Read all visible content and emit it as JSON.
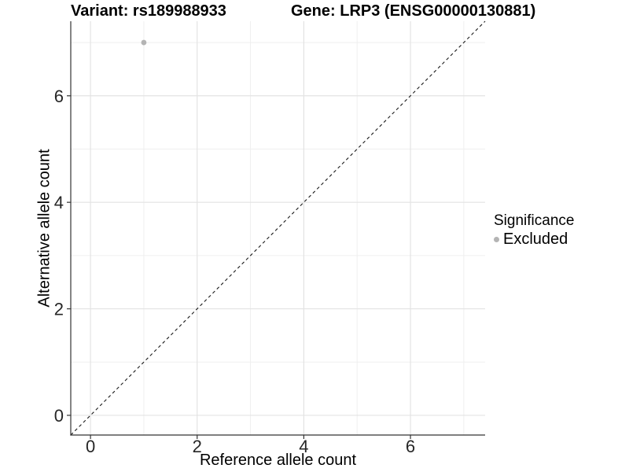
{
  "chart_data": {
    "type": "scatter",
    "title_left": "Variant: rs189988933",
    "title_right": "Gene: LRP3 (ENSG00000130881)",
    "xlabel": "Reference allele count",
    "ylabel": "Alternative allele count",
    "xlim": [
      -0.37,
      7.4
    ],
    "ylim": [
      -0.37,
      7.4
    ],
    "x_ticks": [
      0,
      2,
      4,
      6
    ],
    "y_ticks": [
      0,
      2,
      4,
      6
    ],
    "x_minor_ticks": [
      1,
      3,
      5,
      7
    ],
    "y_minor_ticks": [
      1,
      3,
      5,
      7
    ],
    "grid": "major+minor",
    "legend_position": "right",
    "series": [
      {
        "name": "Excluded",
        "color": "#b4b4b4",
        "points": [
          {
            "x": 1,
            "y": 7
          }
        ]
      }
    ],
    "reference_line": {
      "kind": "identity",
      "equation": "y = x",
      "style": "dashed",
      "color": "#1a1a1a"
    },
    "legend": {
      "title": "Significance",
      "entries": [
        {
          "label": "Excluded",
          "marker": "circle",
          "color": "#b4b4b4"
        }
      ]
    }
  },
  "colors": {
    "background": "#ffffff",
    "grid_major": "#e3e3e3",
    "grid_minor": "#efefef",
    "axis_line": "#333333",
    "tick_mark": "#333333",
    "tick_label": "#262626",
    "text": "#000000"
  }
}
